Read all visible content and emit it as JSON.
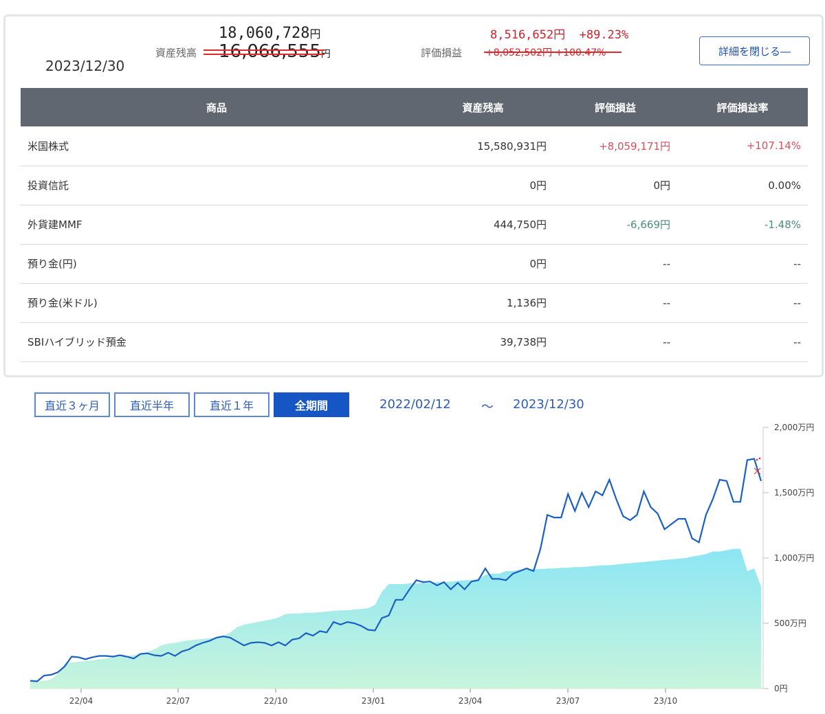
{
  "summary": {
    "date": "2023/12/30",
    "asset_label": "資産残高",
    "asset_new": "18,060,728",
    "asset_old": "16,066,555",
    "yen": "円",
    "pl_label": "評価損益",
    "pl_new_amount": "8,516,652円",
    "pl_new_rate": "+89.23%",
    "pl_old": "+8,052,502円 +100.47%",
    "close_button": "詳細を閉じる―"
  },
  "table": {
    "headers": [
      "商品",
      "資産残高",
      "評価損益",
      "評価損益率"
    ],
    "rows": [
      {
        "name": "米国株式",
        "balance": "15,580,931円",
        "pl": "+8,059,171円",
        "rate": "+107.14%",
        "sign": "pos"
      },
      {
        "name": "投資信託",
        "balance": "0円",
        "pl": "0円",
        "rate": "0.00%",
        "sign": ""
      },
      {
        "name": "外貨建MMF",
        "balance": "444,750円",
        "pl": "-6,669円",
        "rate": "-1.48%",
        "sign": "neg"
      },
      {
        "name": "預り金(円)",
        "balance": "0円",
        "pl": "--",
        "rate": "--",
        "sign": ""
      },
      {
        "name": "預り金(米ドル)",
        "balance": "1,136円",
        "pl": "--",
        "rate": "--",
        "sign": ""
      },
      {
        "name": "SBIハイブリッド預金",
        "balance": "39,738円",
        "pl": "--",
        "rate": "--",
        "sign": ""
      }
    ]
  },
  "period": {
    "tabs": [
      "直近３ヶ月",
      "直近半年",
      "直近１年",
      "全期間"
    ],
    "active": 3,
    "start": "2022/02/12",
    "sep": "～",
    "end": "2023/12/30"
  },
  "chart_data": {
    "type": "line",
    "y_unit": "万円",
    "ylim": [
      0,
      2000
    ],
    "y_ticks": [
      "2,000万円",
      "1,500万円",
      "1,000万円",
      "500万円",
      "0円"
    ],
    "y_tick_values": [
      2000,
      1500,
      1000,
      500,
      0
    ],
    "x_ticks": [
      "22/04",
      "22/07",
      "22/10",
      "23/01",
      "23/04",
      "23/07",
      "23/10"
    ],
    "colors": {
      "line": "#1a5fc4",
      "area_top": "#8ce6f4",
      "area_bottom": "#c8f4dc"
    },
    "series": [
      {
        "values": [
          60,
          55,
          100,
          105,
          125,
          170,
          245,
          240,
          225,
          240,
          250,
          250,
          245,
          255,
          245,
          230,
          265,
          270,
          255,
          250,
          275,
          250,
          285,
          300,
          330,
          350,
          365,
          390,
          400,
          390,
          360,
          330,
          350,
          355,
          350,
          330,
          355,
          330,
          375,
          385,
          425,
          405,
          440,
          430,
          510,
          490,
          510,
          500,
          480,
          450,
          445,
          540,
          560,
          680,
          680,
          760,
          830,
          815,
          820,
          790,
          815,
          760,
          810,
          760,
          820,
          830,
          920,
          840,
          840,
          830,
          880,
          900,
          920,
          900,
          1070,
          1330,
          1310,
          1310,
          1490,
          1360,
          1500,
          1390,
          1510,
          1480,
          1600,
          1450,
          1320,
          1290,
          1330,
          1510,
          1390,
          1340,
          1220,
          1260,
          1300,
          1300,
          1150,
          1120,
          1330,
          1450,
          1600,
          1590,
          1430,
          1430,
          1750,
          1760,
          1590
        ]
      },
      {
        "values": [
          55,
          55,
          60,
          70,
          110,
          190,
          200,
          205,
          210,
          215,
          225,
          230,
          240,
          245,
          250,
          255,
          270,
          280,
          300,
          330,
          345,
          350,
          360,
          370,
          375,
          380,
          385,
          390,
          400,
          430,
          470,
          490,
          500,
          510,
          520,
          530,
          545,
          570,
          575,
          575,
          580,
          580,
          585,
          590,
          595,
          600,
          600,
          605,
          610,
          615,
          640,
          740,
          800,
          800,
          800,
          805,
          805,
          810,
          810,
          815,
          815,
          820,
          825,
          830,
          830,
          840,
          870,
          880,
          880,
          900,
          900,
          910,
          910,
          915,
          915,
          920,
          920,
          925,
          925,
          930,
          930,
          935,
          940,
          945,
          945,
          950,
          955,
          960,
          965,
          970,
          975,
          980,
          985,
          990,
          995,
          1000,
          1010,
          1020,
          1030,
          1050,
          1050,
          1060,
          1070,
          1070,
          900,
          920,
          780
        ]
      }
    ]
  }
}
